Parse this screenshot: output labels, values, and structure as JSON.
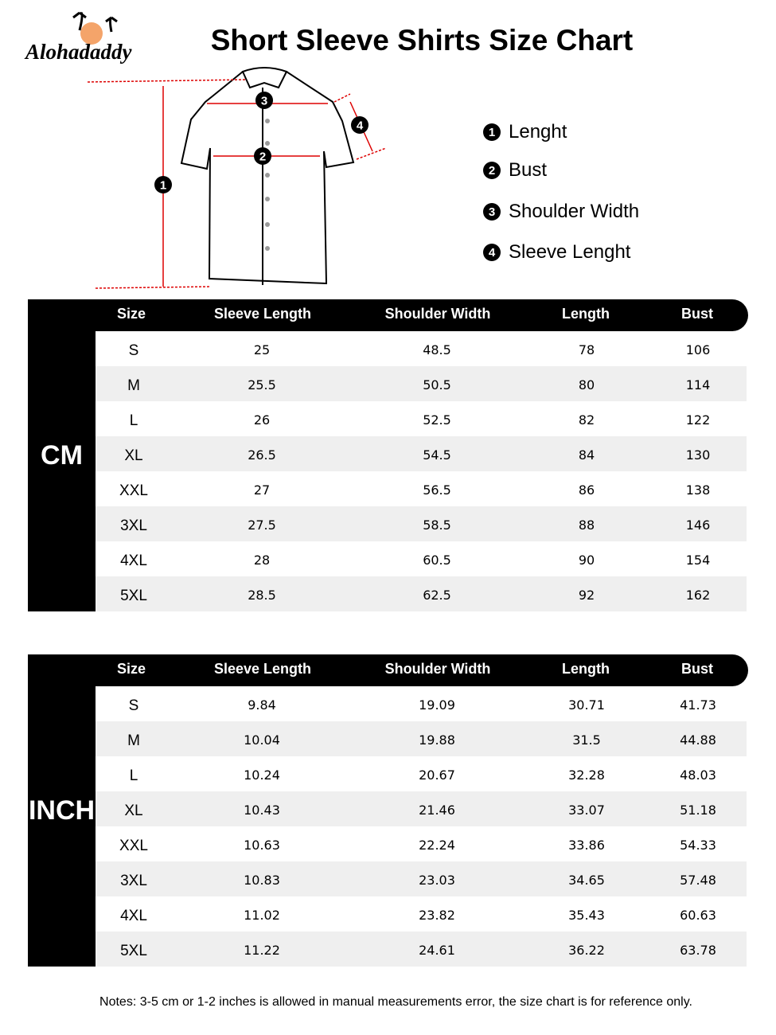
{
  "header": {
    "brand": "Alohadaddy",
    "title": "Short Sleeve Shirts Size Chart"
  },
  "legend": [
    {
      "number": "1",
      "label": "Lenght"
    },
    {
      "number": "2",
      "label": "Bust"
    },
    {
      "number": "3",
      "label": "Shoulder Width"
    },
    {
      "number": "4",
      "label": "Sleeve Lenght"
    }
  ],
  "tables": [
    {
      "unit": "CM",
      "columns": [
        "Size",
        "Sleeve Length",
        "Shoulder Width",
        "Length",
        "Bust"
      ],
      "rows": [
        [
          "S",
          "25",
          "48.5",
          "78",
          "106"
        ],
        [
          "M",
          "25.5",
          "50.5",
          "80",
          "114"
        ],
        [
          "L",
          "26",
          "52.5",
          "82",
          "122"
        ],
        [
          "XL",
          "26.5",
          "54.5",
          "84",
          "130"
        ],
        [
          "XXL",
          "27",
          "56.5",
          "86",
          "138"
        ],
        [
          "3XL",
          "27.5",
          "58.5",
          "88",
          "146"
        ],
        [
          "4XL",
          "28",
          "60.5",
          "90",
          "154"
        ],
        [
          "5XL",
          "28.5",
          "62.5",
          "92",
          "162"
        ]
      ]
    },
    {
      "unit": "INCH",
      "columns": [
        "Size",
        "Sleeve Length",
        "Shoulder Width",
        "Length",
        "Bust"
      ],
      "rows": [
        [
          "S",
          "9.84",
          "19.09",
          "30.71",
          "41.73"
        ],
        [
          "M",
          "10.04",
          "19.88",
          "31.5",
          "44.88"
        ],
        [
          "L",
          "10.24",
          "20.67",
          "32.28",
          "48.03"
        ],
        [
          "XL",
          "10.43",
          "21.46",
          "33.07",
          "51.18"
        ],
        [
          "XXL",
          "10.63",
          "22.24",
          "33.86",
          "54.33"
        ],
        [
          "3XL",
          "10.83",
          "23.03",
          "34.65",
          "57.48"
        ],
        [
          "4XL",
          "11.02",
          "23.82",
          "35.43",
          "60.63"
        ],
        [
          "5XL",
          "11.22",
          "24.61",
          "36.22",
          "63.78"
        ]
      ]
    }
  ],
  "notes": "Notes: 3-5 cm or 1-2 inches is allowed in manual measurements error, the size chart is for reference only."
}
